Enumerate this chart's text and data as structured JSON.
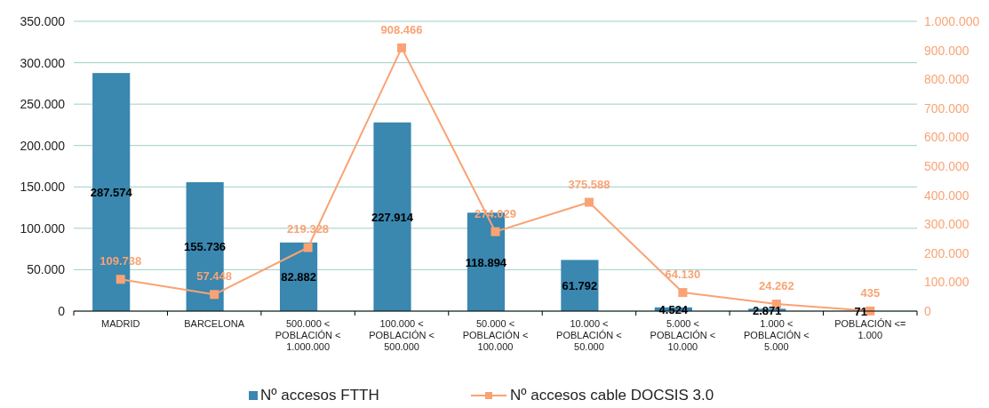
{
  "chart_data": {
    "type": "bar",
    "categories": [
      "MADRID",
      "BARCELONA",
      "500.000 <\nPOBLACIÓN <\n1.000.000",
      "100.000 <\nPOBLACIÓN <\n500.000",
      "50.000 <\nPOBLACIÓN <\n100.000",
      "10.000 <\nPOBLACIÓN <\n50.000",
      "5.000 <\nPOBLACIÓN <\n10.000",
      "1.000 <\nPOBLACIÓN <\n5.000",
      "POBLACIÓN <=\n1.000"
    ],
    "series": [
      {
        "name": "Nº accesos FTTH",
        "color": "#3a87b0",
        "values": [
          287574,
          155736,
          82882,
          227914,
          118894,
          61792,
          4524,
          2871,
          71
        ],
        "value_labels": [
          "287.574",
          "155.736",
          "82.882",
          "227.914",
          "118.894",
          "61.792",
          "4.524",
          "2.871",
          "71"
        ]
      },
      {
        "name": "Nº accesos cable DOCSIS 3.0",
        "type": "line",
        "axis": "y2",
        "color": "#f9a374",
        "marker": "square",
        "values": [
          109738,
          57448,
          219328,
          908466,
          274029,
          375588,
          64130,
          24262,
          435
        ],
        "value_labels": [
          "109.738",
          "57.448",
          "219.328",
          "908.466",
          "274.029",
          "375.588",
          "64.130",
          "24.262",
          "435"
        ]
      }
    ],
    "ylim": [
      0,
      350000
    ],
    "yticks": [
      {
        "value": 0,
        "label": "0"
      },
      {
        "value": 50000,
        "label": "50.000"
      },
      {
        "value": 100000,
        "label": "100.000"
      },
      {
        "value": 150000,
        "label": "150.000"
      },
      {
        "value": 200000,
        "label": "200.000"
      },
      {
        "value": 250000,
        "label": "250.000"
      },
      {
        "value": 300000,
        "label": "300.000"
      },
      {
        "value": 350000,
        "label": "350.000"
      }
    ],
    "y2lim": [
      0,
      1000000
    ],
    "y2ticks": [
      {
        "value": 0,
        "label": "0"
      },
      {
        "value": 100000,
        "label": "100.000"
      },
      {
        "value": 200000,
        "label": "200.000"
      },
      {
        "value": 300000,
        "label": "300.000"
      },
      {
        "value": 400000,
        "label": "400.000"
      },
      {
        "value": 500000,
        "label": "500.000"
      },
      {
        "value": 600000,
        "label": "600.000"
      },
      {
        "value": 700000,
        "label": "700.000"
      },
      {
        "value": 800000,
        "label": "800.000"
      },
      {
        "value": 900000,
        "label": "900.000"
      },
      {
        "value": 1000000,
        "label": "1.000.000"
      }
    ],
    "grid": "y",
    "legend": "bottom"
  }
}
